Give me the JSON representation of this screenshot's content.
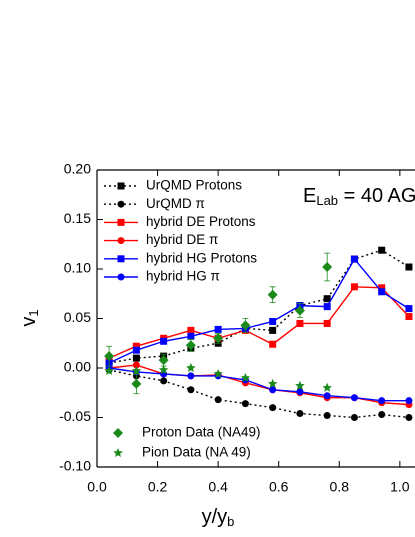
{
  "chart_data": {
    "type": "line",
    "annotation": {
      "text": "E",
      "subscript": "Lab",
      "rest": " = 40 AG"
    },
    "xlabel": {
      "text": "y/y",
      "subscript": "b"
    },
    "ylabel": {
      "text": "v",
      "subscript": "1"
    },
    "xlim": [
      0,
      1.05
    ],
    "ylim": [
      -0.1,
      0.2
    ],
    "xticks": [
      {
        "value": 0,
        "label": "0.0"
      },
      {
        "value": 0.2,
        "label": "0.2"
      },
      {
        "value": 0.4,
        "label": "0.4"
      },
      {
        "value": 0.6,
        "label": "0.6"
      },
      {
        "value": 0.8,
        "label": "0.8"
      },
      {
        "value": 1.0,
        "label": "1.0"
      }
    ],
    "yticks": [
      {
        "value": 0.2,
        "label": "0.20"
      },
      {
        "value": 0.15,
        "label": "0.15"
      },
      {
        "value": 0.1,
        "label": "0.10"
      },
      {
        "value": 0.05,
        "label": "0.05"
      },
      {
        "value": 0,
        "label": "0.00"
      },
      {
        "value": -0.05,
        "label": "-0.05"
      },
      {
        "value": -0.1,
        "label": "-0.10"
      }
    ],
    "series": [
      {
        "name": "UrQMD Protons",
        "color": "#000000",
        "line": "dot",
        "marker": "square",
        "x": [
          0.04,
          0.13,
          0.22,
          0.31,
          0.4,
          0.49,
          0.58,
          0.67,
          0.76,
          0.85,
          0.94,
          1.03
        ],
        "values": [
          0.005,
          0.01,
          0.012,
          0.02,
          0.025,
          0.04,
          0.038,
          0.063,
          0.07,
          0.11,
          0.119,
          0.102
        ]
      },
      {
        "name": "UrQMD π",
        "color": "#000000",
        "line": "dot",
        "marker": "circle",
        "x": [
          0.04,
          0.13,
          0.22,
          0.31,
          0.4,
          0.49,
          0.58,
          0.67,
          0.76,
          0.85,
          0.94,
          1.03
        ],
        "values": [
          -0.002,
          -0.008,
          -0.013,
          -0.022,
          -0.032,
          -0.036,
          -0.04,
          -0.046,
          -0.048,
          -0.05,
          -0.047,
          -0.05
        ]
      },
      {
        "name": "hybrid DE Protons",
        "color": "#ff0000",
        "line": "solid",
        "marker": "square",
        "x": [
          0.04,
          0.13,
          0.22,
          0.31,
          0.4,
          0.49,
          0.58,
          0.67,
          0.76,
          0.85,
          0.94,
          1.03
        ],
        "values": [
          0.01,
          0.022,
          0.03,
          0.038,
          0.03,
          0.038,
          0.024,
          0.045,
          0.045,
          0.082,
          0.081,
          0.052
        ]
      },
      {
        "name": "hybrid DE π",
        "color": "#ff0000",
        "line": "solid",
        "marker": "circle",
        "x": [
          0.04,
          0.13,
          0.22,
          0.31,
          0.4,
          0.49,
          0.58,
          0.67,
          0.76,
          0.85,
          0.94,
          1.03
        ],
        "values": [
          0.0,
          0.003,
          -0.006,
          -0.008,
          -0.007,
          -0.015,
          -0.022,
          -0.025,
          -0.03,
          -0.03,
          -0.035,
          -0.037
        ]
      },
      {
        "name": "hybrid HG Protons",
        "color": "#0000ff",
        "line": "solid",
        "marker": "square",
        "x": [
          0.04,
          0.13,
          0.22,
          0.31,
          0.4,
          0.49,
          0.58,
          0.67,
          0.76,
          0.85,
          0.94,
          1.03
        ],
        "values": [
          0.005,
          0.018,
          0.027,
          0.032,
          0.039,
          0.04,
          0.047,
          0.063,
          0.062,
          0.11,
          0.077,
          0.06
        ]
      },
      {
        "name": "hybrid HG π",
        "color": "#0000ff",
        "line": "solid",
        "marker": "circle",
        "x": [
          0.04,
          0.13,
          0.22,
          0.31,
          0.4,
          0.49,
          0.58,
          0.67,
          0.76,
          0.85,
          0.94,
          1.03
        ],
        "values": [
          0.0,
          -0.004,
          -0.006,
          -0.008,
          -0.008,
          -0.012,
          -0.022,
          -0.024,
          -0.028,
          -0.03,
          -0.033,
          -0.033
        ]
      },
      {
        "name": "Proton Data (NA49)",
        "color": "#1a8a1a",
        "line": null,
        "marker": "diamond",
        "x": [
          0.04,
          0.13,
          0.22,
          0.31,
          0.4,
          0.49,
          0.58,
          0.67,
          0.76
        ],
        "values": [
          0.012,
          -0.016,
          0.008,
          0.023,
          0.03,
          0.043,
          0.074,
          0.058,
          0.102
        ],
        "errors": [
          0.01,
          0.01,
          0.006,
          0.006,
          0.005,
          0.007,
          0.008,
          0.007,
          0.014
        ]
      },
      {
        "name": "Pion Data (NA 49)",
        "color": "#1a8a1a",
        "line": null,
        "marker": "star",
        "x": [
          0.04,
          0.13,
          0.22,
          0.31,
          0.4,
          0.49,
          0.58,
          0.67,
          0.76
        ],
        "values": [
          -0.003,
          -0.003,
          -0.002,
          0.0,
          -0.006,
          -0.01,
          -0.016,
          -0.018,
          -0.02
        ]
      }
    ]
  }
}
